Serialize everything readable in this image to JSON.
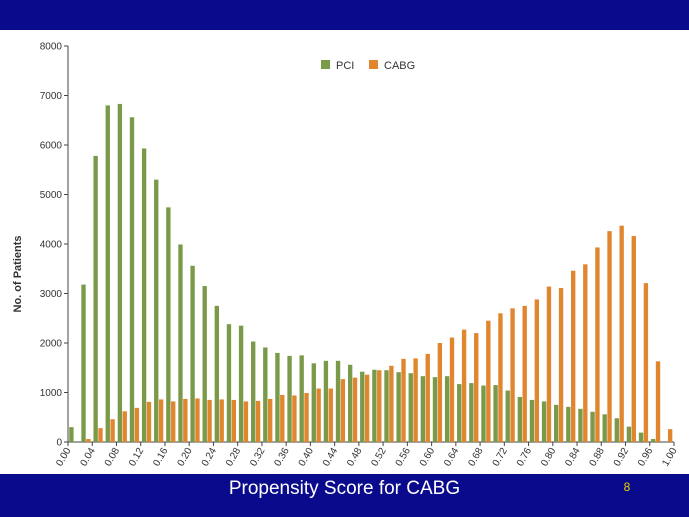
{
  "slide": {
    "x_title": "Propensity Score for CABG",
    "slide_number": "8"
  },
  "colors": {
    "background": "#0a0a8c",
    "panel": "#ffffff",
    "pci": "#7a9a4a",
    "cabg": "#e0862e",
    "axis": "#444444",
    "title_text": "#ffffff",
    "slide_number": "#f0d000"
  },
  "chart_data": {
    "type": "bar",
    "title": "",
    "xlabel": "Propensity Score for CABG",
    "ylabel": "No. of Patients",
    "ylim": [
      0,
      8000
    ],
    "yticks": [
      0,
      1000,
      2000,
      3000,
      4000,
      5000,
      6000,
      7000,
      8000
    ],
    "xtick_labels": [
      "0.00",
      "0.04",
      "0.08",
      "0.12",
      "0.16",
      "0.20",
      "0.24",
      "0.28",
      "0.32",
      "0.36",
      "0.40",
      "0.44",
      "0.48",
      "0.52",
      "0.56",
      "0.60",
      "0.64",
      "0.68",
      "0.72",
      "0.76",
      "0.80",
      "0.84",
      "0.88",
      "0.92",
      "0.96",
      "1.00"
    ],
    "legend_position": "top-center",
    "grid": false,
    "categories": [
      "0.00",
      "0.02",
      "0.04",
      "0.06",
      "0.08",
      "0.10",
      "0.12",
      "0.14",
      "0.16",
      "0.18",
      "0.20",
      "0.22",
      "0.24",
      "0.26",
      "0.28",
      "0.30",
      "0.32",
      "0.34",
      "0.36",
      "0.38",
      "0.40",
      "0.42",
      "0.44",
      "0.46",
      "0.48",
      "0.50",
      "0.52",
      "0.54",
      "0.56",
      "0.58",
      "0.60",
      "0.62",
      "0.64",
      "0.66",
      "0.68",
      "0.70",
      "0.72",
      "0.74",
      "0.76",
      "0.78",
      "0.80",
      "0.82",
      "0.84",
      "0.86",
      "0.88",
      "0.90",
      "0.92",
      "0.94",
      "0.96",
      "0.98"
    ],
    "series": [
      {
        "name": "PCI",
        "values": [
          300,
          3180,
          5780,
          6800,
          6830,
          6560,
          5930,
          5300,
          4740,
          3990,
          3560,
          3150,
          2750,
          2380,
          2350,
          2030,
          1910,
          1800,
          1740,
          1750,
          1590,
          1640,
          1640,
          1560,
          1420,
          1460,
          1450,
          1410,
          1390,
          1330,
          1310,
          1330,
          1170,
          1190,
          1140,
          1150,
          1040,
          910,
          850,
          820,
          750,
          710,
          670,
          610,
          560,
          480,
          310,
          190,
          60,
          0
        ]
      },
      {
        "name": "CABG",
        "values": [
          0,
          60,
          280,
          460,
          620,
          690,
          810,
          860,
          820,
          870,
          880,
          850,
          860,
          850,
          820,
          830,
          870,
          950,
          940,
          990,
          1080,
          1080,
          1270,
          1300,
          1360,
          1450,
          1540,
          1680,
          1690,
          1780,
          2000,
          2110,
          2270,
          2200,
          2450,
          2600,
          2700,
          2750,
          2880,
          3140,
          3110,
          3460,
          3590,
          3930,
          4260,
          4370,
          4160,
          3210,
          1630,
          260
        ]
      }
    ]
  }
}
